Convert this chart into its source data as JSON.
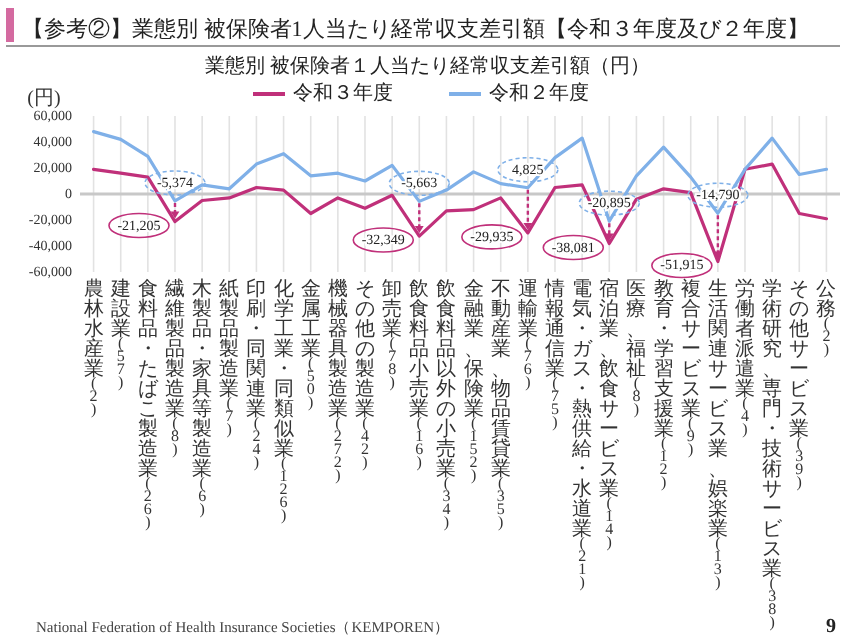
{
  "chart_data": {
    "type": "line",
    "title": "【参考②】業態別 被保険者1人当たり経常収支差引額【令和３年度及び２年度】",
    "subtitle": "業態別 被保険者１人当たり経常収支差引額（円）",
    "ylabel": "(円)",
    "categories": [
      "農林水産業(2)",
      "建設業(57)",
      "食料品・たばこ製造業(26)",
      "繊維製品製造業(8)",
      "木製品・家具等製造業(6)",
      "紙製品製造業(7)",
      "印刷・同関連業(24)",
      "化学工業・同類似業(126)",
      "金属工業(50)",
      "機械器具製造業(272)",
      "その他の製造業(42)",
      "卸売業(78)",
      "飲食料品小売業(16)",
      "飲食料品以外の小売業(34)",
      "金融業、保険業(152)",
      "不動産業、物品賃貸業(35)",
      "運輸業(76)",
      "情報通信業(75)",
      "電気・ガス・熱供給・水道業(21)",
      "宿泊業、飲食サービス業(14)",
      "医療、福祉(8)",
      "教育・学習支援業(12)",
      "複合サービス業(9)",
      "生活関連サービス業、娯楽業(13)",
      "労働者派遣業(4)",
      "学術研究、専門・技術サービス業(38)",
      "その他サービス業(39)",
      "公務(2)"
    ],
    "series": [
      {
        "name": "令和３年度",
        "color": "#c0307a",
        "values": [
          19000,
          16000,
          13000,
          -21205,
          -5000,
          -3000,
          5000,
          3000,
          -15000,
          -3000,
          -11000,
          -1000,
          -32349,
          -13000,
          -12000,
          -3000,
          -29935,
          5000,
          7000,
          -38081,
          -4000,
          4000,
          1000,
          -51915,
          19000,
          23000,
          -15000,
          -19000
        ],
        "value_labels": [
          null,
          null,
          null,
          "-21,205",
          null,
          null,
          null,
          null,
          null,
          null,
          null,
          null,
          "-32,349",
          null,
          null,
          null,
          "-29,935",
          null,
          null,
          "-38,081",
          null,
          null,
          null,
          "-51,915",
          null,
          null,
          null,
          null
        ]
      },
      {
        "name": "令和２年度",
        "color": "#7fb0e8",
        "values": [
          48000,
          42000,
          29000,
          -5374,
          7000,
          4000,
          23000,
          31000,
          14000,
          16000,
          10000,
          22000,
          -5663,
          3000,
          17000,
          8000,
          4825,
          28000,
          43000,
          -20895,
          14000,
          36000,
          13000,
          -14790,
          19000,
          43000,
          15000,
          19000
        ],
        "value_labels": [
          null,
          null,
          null,
          "-5,374",
          null,
          null,
          null,
          null,
          null,
          null,
          null,
          null,
          "-5,663",
          null,
          null,
          null,
          "4,825",
          null,
          null,
          "-20,895",
          null,
          null,
          null,
          "-14,790",
          null,
          null,
          null,
          null
        ]
      }
    ],
    "ylim": [
      -60000,
      60000
    ],
    "yticks": [
      {
        "value": -60000,
        "label": "-60,000"
      },
      {
        "value": -40000,
        "label": "-40,000"
      },
      {
        "value": -20000,
        "label": "-20,000"
      },
      0,
      {
        "value": 20000,
        "label": "20,000"
      },
      {
        "value": 40000,
        "label": "40,000"
      },
      {
        "value": 60000,
        "label": "60,000"
      }
    ],
    "grid": "x",
    "legend": "top",
    "annotations": [
      "National Federation of Health Insurance Societies（KEMPOREN）",
      "9"
    ]
  }
}
